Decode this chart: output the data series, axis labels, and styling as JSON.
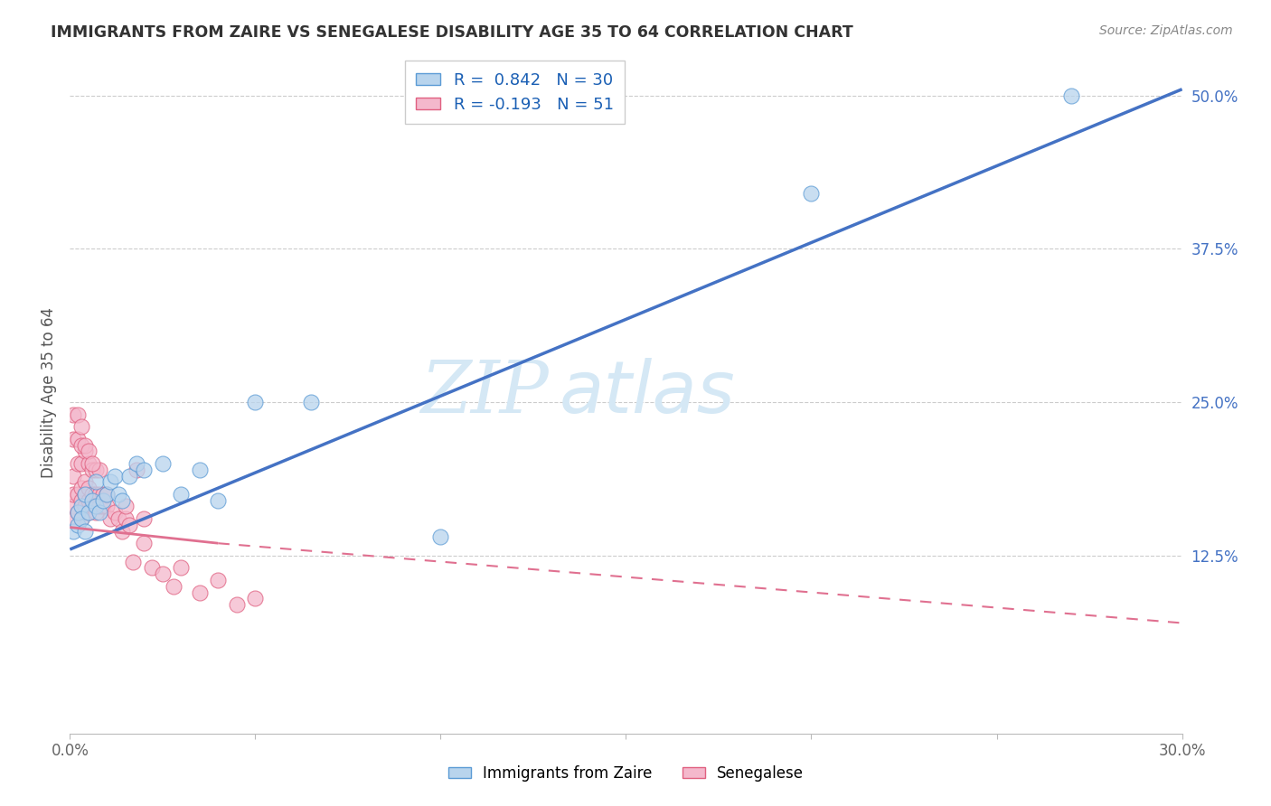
{
  "title": "IMMIGRANTS FROM ZAIRE VS SENEGALESE DISABILITY AGE 35 TO 64 CORRELATION CHART",
  "source": "Source: ZipAtlas.com",
  "ylabel_label": "Disability Age 35 to 64",
  "xlim": [
    0.0,
    0.3
  ],
  "ylim": [
    -0.02,
    0.535
  ],
  "x_tick_positions": [
    0.0,
    0.05,
    0.1,
    0.15,
    0.2,
    0.25,
    0.3
  ],
  "x_tick_labels": [
    "0.0%",
    "",
    "",
    "",
    "",
    "",
    "30.0%"
  ],
  "y_ticks": [
    0.125,
    0.25,
    0.375,
    0.5
  ],
  "y_tick_labels": [
    "12.5%",
    "25.0%",
    "37.5%",
    "50.0%"
  ],
  "R_zaire": 0.842,
  "N_zaire": 30,
  "R_senegalese": -0.193,
  "N_senegalese": 51,
  "color_zaire_fill": "#b8d4ed",
  "color_zaire_edge": "#5b9bd5",
  "color_zaire_line": "#4472c4",
  "color_senegalese_fill": "#f4b8cc",
  "color_senegalese_edge": "#e06080",
  "color_senegalese_line": "#e07090",
  "watermark_zip": "ZIP",
  "watermark_atlas": "atlas",
  "watermark_color": "#d5e8f5",
  "background_color": "#ffffff",
  "grid_color": "#cccccc",
  "zaire_x": [
    0.001,
    0.002,
    0.002,
    0.003,
    0.003,
    0.004,
    0.004,
    0.005,
    0.006,
    0.007,
    0.007,
    0.008,
    0.009,
    0.01,
    0.011,
    0.012,
    0.013,
    0.014,
    0.016,
    0.018,
    0.02,
    0.025,
    0.03,
    0.035,
    0.04,
    0.05,
    0.065,
    0.1,
    0.2,
    0.27
  ],
  "zaire_y": [
    0.145,
    0.15,
    0.16,
    0.165,
    0.155,
    0.145,
    0.175,
    0.16,
    0.17,
    0.185,
    0.165,
    0.16,
    0.17,
    0.175,
    0.185,
    0.19,
    0.175,
    0.17,
    0.19,
    0.2,
    0.195,
    0.2,
    0.175,
    0.195,
    0.17,
    0.25,
    0.25,
    0.14,
    0.42,
    0.5
  ],
  "senegalese_x": [
    0.001,
    0.001,
    0.001,
    0.001,
    0.002,
    0.002,
    0.002,
    0.003,
    0.003,
    0.003,
    0.003,
    0.004,
    0.004,
    0.004,
    0.004,
    0.005,
    0.005,
    0.005,
    0.005,
    0.006,
    0.006,
    0.006,
    0.007,
    0.007,
    0.007,
    0.008,
    0.008,
    0.008,
    0.009,
    0.009,
    0.01,
    0.01,
    0.011,
    0.012,
    0.013,
    0.014,
    0.015,
    0.015,
    0.016,
    0.017,
    0.018,
    0.02,
    0.02,
    0.022,
    0.025,
    0.028,
    0.03,
    0.035,
    0.04,
    0.045,
    0.05
  ],
  "senegalese_y": [
    0.155,
    0.165,
    0.175,
    0.19,
    0.16,
    0.175,
    0.2,
    0.155,
    0.17,
    0.18,
    0.2,
    0.165,
    0.175,
    0.185,
    0.21,
    0.16,
    0.17,
    0.18,
    0.2,
    0.165,
    0.175,
    0.195,
    0.16,
    0.175,
    0.195,
    0.165,
    0.175,
    0.195,
    0.165,
    0.175,
    0.165,
    0.175,
    0.155,
    0.16,
    0.155,
    0.145,
    0.155,
    0.165,
    0.15,
    0.12,
    0.195,
    0.135,
    0.155,
    0.115,
    0.11,
    0.1,
    0.115,
    0.095,
    0.105,
    0.085,
    0.09
  ],
  "senegalese_outlier_x": [
    0.001,
    0.001,
    0.002,
    0.002,
    0.003,
    0.003,
    0.004,
    0.005,
    0.006
  ],
  "senegalese_outlier_y": [
    0.22,
    0.24,
    0.22,
    0.24,
    0.215,
    0.23,
    0.215,
    0.21,
    0.2
  ]
}
